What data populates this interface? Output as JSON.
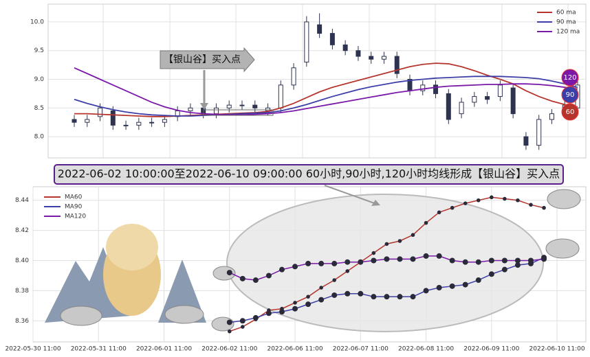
{
  "chart_data": [
    {
      "type": "candlestick",
      "candles": {
        "open": [
          8.3,
          8.25,
          8.35,
          8.45,
          8.2,
          8.2,
          8.25,
          8.25,
          8.35,
          8.45,
          8.5,
          8.4,
          8.5,
          8.55,
          8.55,
          8.45,
          8.5,
          8.9,
          9.3,
          9.95,
          9.8,
          9.6,
          9.5,
          9.4,
          9.35,
          9.4,
          9.0,
          8.8,
          8.9,
          8.75,
          8.4,
          8.6,
          8.7,
          8.7,
          8.85,
          8.0,
          7.85,
          8.3,
          8.4,
          8.5
        ],
        "high": [
          8.38,
          8.38,
          8.58,
          8.53,
          8.28,
          8.33,
          8.33,
          8.38,
          8.53,
          8.58,
          8.58,
          8.58,
          8.63,
          8.63,
          8.63,
          8.58,
          8.98,
          9.28,
          10.1,
          10.15,
          9.88,
          9.68,
          9.58,
          9.48,
          9.48,
          9.48,
          9.08,
          8.98,
          8.98,
          8.83,
          8.68,
          8.78,
          8.78,
          8.98,
          8.93,
          8.08,
          8.38,
          8.48,
          8.63,
          8.98
        ],
        "low": [
          8.17,
          8.17,
          8.27,
          8.12,
          8.12,
          8.12,
          8.17,
          8.17,
          8.27,
          8.37,
          8.32,
          8.32,
          8.42,
          8.47,
          8.42,
          8.37,
          8.42,
          8.82,
          9.22,
          9.72,
          9.52,
          9.42,
          9.32,
          9.27,
          9.27,
          9.02,
          8.72,
          8.72,
          8.67,
          8.22,
          8.32,
          8.52,
          8.57,
          8.62,
          8.32,
          7.77,
          7.77,
          8.22,
          8.32,
          8.42
        ],
        "close": [
          8.25,
          8.3,
          8.5,
          8.2,
          8.2,
          8.25,
          8.25,
          8.3,
          8.45,
          8.5,
          8.4,
          8.5,
          8.55,
          8.55,
          8.5,
          8.5,
          8.9,
          9.2,
          10.0,
          9.8,
          9.6,
          9.5,
          9.4,
          9.35,
          9.4,
          9.1,
          8.8,
          8.9,
          8.75,
          8.3,
          8.6,
          8.7,
          8.65,
          8.9,
          8.4,
          7.85,
          8.3,
          8.4,
          8.55,
          8.9
        ]
      },
      "series": [
        {
          "name": "60 ma",
          "color": "#b5352d",
          "values": [
            8.4,
            8.4,
            8.39,
            8.38,
            8.37,
            8.36,
            8.35,
            8.35,
            8.36,
            8.37,
            8.38,
            8.39,
            8.4,
            8.41,
            8.42,
            8.44,
            8.5,
            8.58,
            8.68,
            8.78,
            8.86,
            8.92,
            8.98,
            9.04,
            9.1,
            9.16,
            9.22,
            9.26,
            9.28,
            9.27,
            9.22,
            9.15,
            9.07,
            9.0,
            8.92,
            8.8,
            8.7,
            8.62,
            8.56,
            8.52
          ]
        },
        {
          "name": "90 ma",
          "color": "#3c3ea8",
          "values": [
            8.65,
            8.58,
            8.52,
            8.47,
            8.43,
            8.4,
            8.38,
            8.37,
            8.36,
            8.36,
            8.37,
            8.38,
            8.39,
            8.4,
            8.41,
            8.42,
            8.45,
            8.5,
            8.56,
            8.63,
            8.7,
            8.76,
            8.82,
            8.87,
            8.91,
            8.95,
            8.98,
            9.0,
            9.02,
            9.03,
            9.04,
            9.05,
            9.05,
            9.05,
            9.04,
            9.03,
            9.01,
            8.97,
            8.92,
            8.86
          ]
        },
        {
          "name": "120 ma",
          "color": "#7a18a8",
          "values": [
            9.2,
            9.1,
            9.0,
            8.9,
            8.8,
            8.7,
            8.6,
            8.52,
            8.46,
            8.42,
            8.4,
            8.39,
            8.38,
            8.38,
            8.39,
            8.4,
            8.42,
            8.45,
            8.49,
            8.53,
            8.57,
            8.61,
            8.65,
            8.69,
            8.73,
            8.77,
            8.8,
            8.83,
            8.86,
            8.88,
            8.89,
            8.9,
            8.91,
            8.91,
            8.92,
            8.92,
            8.91,
            8.89,
            8.86,
            8.83
          ]
        }
      ],
      "annotation": "【银山谷】买入点",
      "end_markers": [
        {
          "label": "120",
          "color": "#7a18a8"
        },
        {
          "label": "90",
          "color": "#3c3ea8"
        },
        {
          "label": "60",
          "color": "#b5352d"
        }
      ],
      "ylim": [
        7.63,
        10.31
      ],
      "yticks": [
        {
          "value": 8,
          "label": "8.0"
        },
        8.5,
        {
          "value": 9,
          "label": "9.0"
        },
        9.5,
        {
          "value": 10,
          "label": "10.0"
        }
      ],
      "grid": true
    },
    {
      "type": "line",
      "title": "2022-06-02 10:00:00至2022-06-10 09:00:00 60小时,90小时,120小时均线形成【银山谷】买入点",
      "x": [
        3.0,
        3.2,
        3.4,
        3.6,
        3.8,
        4.0,
        4.2,
        4.4,
        4.6,
        4.8,
        5.0,
        5.2,
        5.4,
        5.6,
        5.8,
        6.0,
        6.2,
        6.4,
        6.6,
        6.8,
        7.0,
        7.2,
        7.4,
        7.6,
        7.8
      ],
      "series": [
        {
          "name": "MA60",
          "color": "#b5352d",
          "values": [
            8.353,
            8.356,
            8.361,
            8.367,
            8.368,
            8.372,
            8.376,
            8.382,
            8.387,
            8.393,
            8.399,
            8.405,
            8.411,
            8.413,
            8.417,
            8.425,
            8.432,
            8.435,
            8.438,
            8.44,
            8.442,
            8.441,
            8.44,
            8.437,
            8.435
          ]
        },
        {
          "name": "MA90",
          "color": "#3c3ea8",
          "values": [
            8.359,
            8.36,
            8.362,
            8.365,
            8.366,
            8.368,
            8.371,
            8.374,
            8.377,
            8.378,
            8.378,
            8.376,
            8.376,
            8.376,
            8.376,
            8.38,
            8.382,
            8.383,
            8.384,
            8.387,
            8.391,
            8.394,
            8.397,
            8.398,
            8.402
          ]
        },
        {
          "name": "MA120",
          "color": "#7a18a8",
          "values": [
            8.392,
            8.388,
            8.387,
            8.39,
            8.394,
            8.396,
            8.398,
            8.398,
            8.398,
            8.399,
            8.399,
            8.4,
            8.401,
            8.401,
            8.401,
            8.403,
            8.403,
            8.4,
            8.399,
            8.399,
            8.4,
            8.4,
            8.4,
            8.4,
            8.401
          ]
        }
      ],
      "xlim": [
        0,
        8.44
      ],
      "xticks": [
        {
          "value": 0,
          "label": "2022-05-30 11:00"
        },
        {
          "value": 1,
          "label": "2022-05-31 11:00"
        },
        {
          "value": 2,
          "label": "2022-06-01 11:00"
        },
        {
          "value": 3,
          "label": "2022-06-02 11:00"
        },
        {
          "value": 4,
          "label": "2022-06-06 11:00"
        },
        {
          "value": 5,
          "label": "2022-06-07 11:00"
        },
        {
          "value": 6,
          "label": "2022-06-08 11:00"
        },
        {
          "value": 7,
          "label": "2022-06-09 11:00"
        },
        {
          "value": 8,
          "label": "2022-06-10 11:00"
        }
      ],
      "ylim": [
        8.346,
        8.449
      ],
      "yticks": [
        8.36,
        8.38,
        {
          "value": 8.4,
          "label": "8.40"
        },
        8.42,
        8.44
      ],
      "grid": true
    }
  ]
}
